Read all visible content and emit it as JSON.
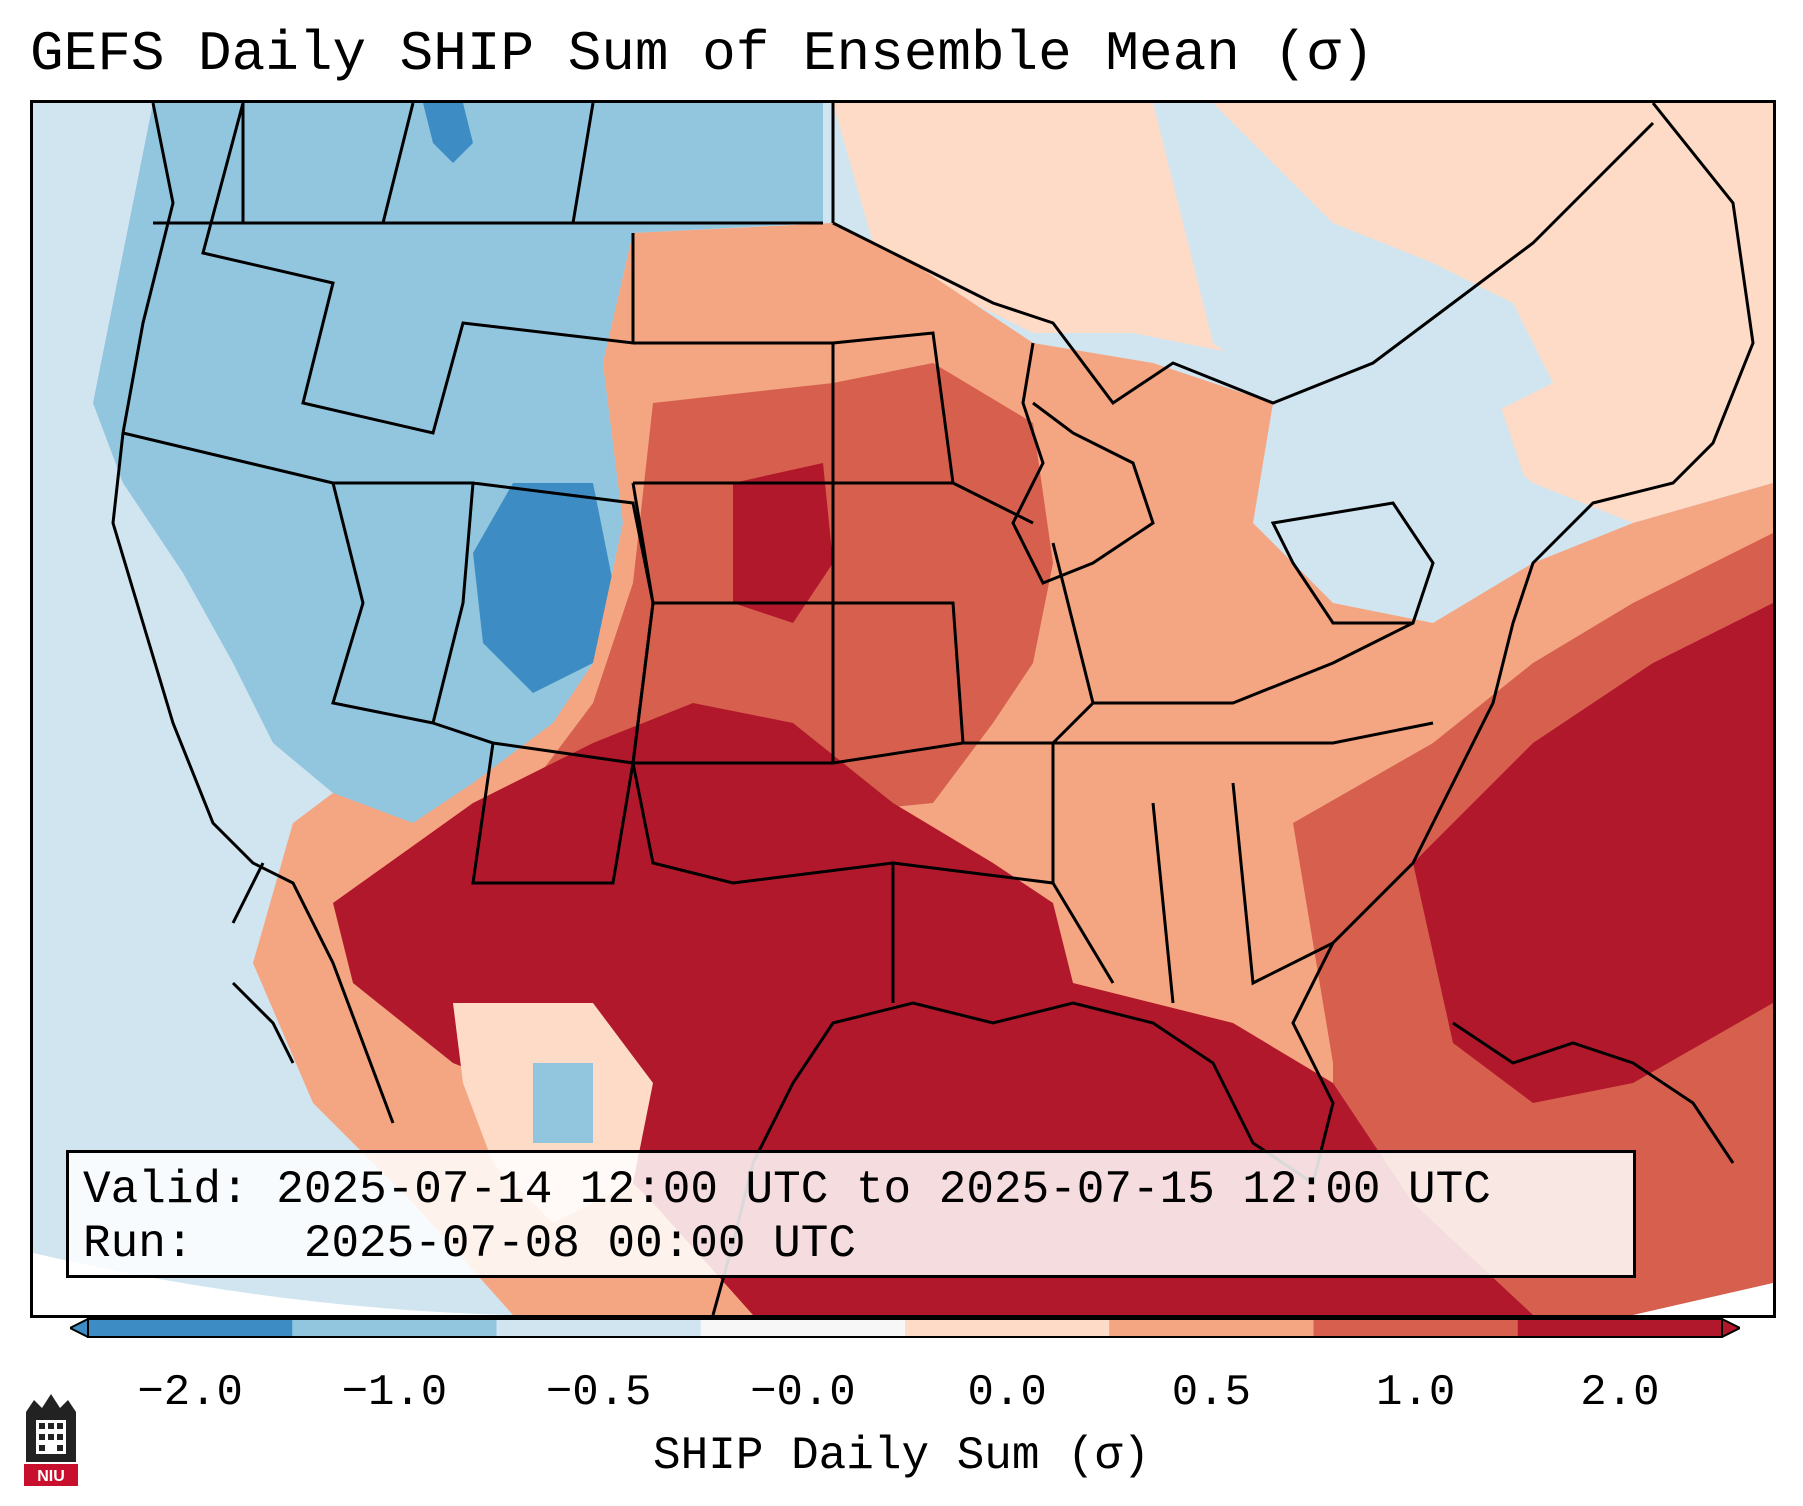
{
  "title": "GEFS Daily SHIP Sum of Ensemble Mean (σ)",
  "info": {
    "valid_label": "Valid:",
    "valid_value": "2025-07-14 12:00 UTC to 2025-07-15 12:00 UTC",
    "run_label": "Run:",
    "run_value": "2025-07-08 00:00 UTC"
  },
  "colorbar": {
    "label": "SHIP Daily Sum (σ)",
    "ticks": [
      "−2.0",
      "−1.0",
      "−0.5",
      "−0.0",
      "0.0",
      "0.5",
      "1.0",
      "2.0"
    ],
    "colors": [
      "#3d8dc4",
      "#92c5de",
      "#d1e5f0",
      "#f7f7f7",
      "#fddbc7",
      "#f4a582",
      "#d6604d",
      "#b2182b"
    ],
    "extend": "both"
  },
  "colors": {
    "strong_negative": "#3d8dc4",
    "negative": "#92c5de",
    "weak_negative": "#d1e5f0",
    "weak_positive": "#fddbc7",
    "positive": "#f4a582",
    "moderate_positive": "#d6604d",
    "strong_positive": "#b2182b",
    "borders": "#000000"
  },
  "logo": {
    "icon": "niu-logo-icon",
    "text": "NIU"
  }
}
